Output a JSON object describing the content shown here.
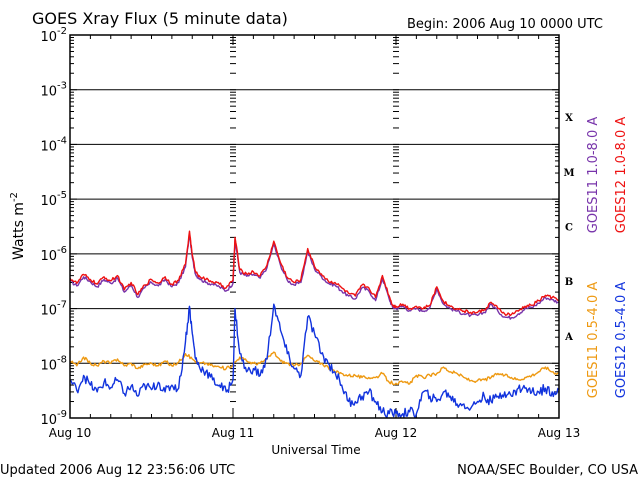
{
  "header": {
    "title": "GOES Xray Flux (5 minute data)",
    "begin": "Begin:  2006 Aug 10 0000 UTC"
  },
  "footer": {
    "updated": "Updated 2006 Aug 12 23:56:06 UTC",
    "credit": "NOAA/SEC Boulder, CO USA"
  },
  "colors": {
    "goes11_long": "#7733aa",
    "goes12_long": "#ee1111",
    "goes11_short": "#ee9911",
    "goes12_short": "#1133dd"
  },
  "chart_data": {
    "type": "line",
    "title": "GOES Xray Flux (5 minute data)",
    "xlabel": "Universal Time",
    "ylabel": "Watts m",
    "ylabel_sup": "-2",
    "y_scale": "log",
    "ylim": [
      1e-09,
      0.01
    ],
    "xlim": [
      0,
      72
    ],
    "x_unit": "hours since 2006 Aug 10 0000 UTC",
    "x_ticks": [
      {
        "x": 0,
        "label": "Aug 10"
      },
      {
        "x": 24,
        "label": "Aug 11"
      },
      {
        "x": 48,
        "label": "Aug 12"
      },
      {
        "x": 72,
        "label": "Aug 13"
      }
    ],
    "y_ticks": [
      {
        "exp": -9,
        "label": "10",
        "sup": "-9"
      },
      {
        "exp": -8,
        "label": "10",
        "sup": "-8"
      },
      {
        "exp": -7,
        "label": "10",
        "sup": "-7"
      },
      {
        "exp": -6,
        "label": "10",
        "sup": "-6"
      },
      {
        "exp": -5,
        "label": "10",
        "sup": "-5"
      },
      {
        "exp": -4,
        "label": "10",
        "sup": "-4"
      },
      {
        "exp": -3,
        "label": "10",
        "sup": "-3"
      },
      {
        "exp": -2,
        "label": "10",
        "sup": "-2"
      }
    ],
    "flare_classes": [
      {
        "label": "A",
        "exp": -7.5
      },
      {
        "label": "B",
        "exp": -6.5
      },
      {
        "label": "C",
        "exp": -5.5
      },
      {
        "label": "M",
        "exp": -4.5
      },
      {
        "label": "X",
        "exp": -3.5
      }
    ],
    "series": [
      {
        "name": "GOES11 1.0-8.0 A",
        "color": "#7733aa",
        "x": [
          0,
          1,
          2,
          3,
          4,
          5,
          6,
          7,
          8,
          9,
          10,
          11,
          12,
          13,
          14,
          15,
          16,
          17,
          17.6,
          18,
          18.5,
          19,
          20,
          21,
          22,
          23,
          24,
          24.3,
          25,
          26,
          27,
          28,
          29,
          30,
          31,
          32,
          33,
          34,
          35,
          36,
          37,
          38,
          39,
          40,
          41,
          42,
          43,
          44,
          45,
          46,
          47,
          47.5,
          48,
          49,
          50,
          51,
          52,
          53,
          54,
          55,
          56,
          57,
          58,
          59,
          60,
          61,
          62,
          63,
          64,
          65,
          66,
          67,
          68,
          69,
          70,
          71,
          72
        ],
        "y": [
          3.2e-07,
          2.6e-07,
          3.8e-07,
          3.1e-07,
          2.5e-07,
          3.4e-07,
          2.9e-07,
          3.6e-07,
          2e-07,
          2.7e-07,
          1.6e-07,
          2.4e-07,
          3e-07,
          2.6e-07,
          3.4e-07,
          2.5e-07,
          3e-07,
          5.8e-07,
          2.3e-06,
          8.5e-07,
          4.2e-07,
          3.6e-07,
          3e-07,
          2.8e-07,
          2.5e-07,
          2.1e-07,
          2.9e-07,
          1.8e-06,
          4.6e-07,
          3.9e-07,
          4.2e-07,
          3.6e-07,
          5.6e-07,
          1.5e-06,
          6.2e-07,
          3.3e-07,
          2.7e-07,
          3e-07,
          1.1e-06,
          5.3e-07,
          3.9e-07,
          2.9e-07,
          2.7e-07,
          2.1e-07,
          1.7e-07,
          1.5e-07,
          2.4e-07,
          2.1e-07,
          1.4e-07,
          3.6e-07,
          1.5e-07,
          1.05e-07,
          1e-07,
          1.1e-07,
          9.2e-08,
          1e-07,
          9e-08,
          1.05e-07,
          2.3e-07,
          1.2e-07,
          1e-07,
          9e-08,
          8e-08,
          7.5e-08,
          7.5e-08,
          8.5e-08,
          1.2e-07,
          9e-08,
          7e-08,
          6.8e-08,
          8e-08,
          1e-07,
          1.05e-07,
          1.25e-07,
          1.6e-07,
          1.45e-07,
          1.3e-07
        ]
      },
      {
        "name": "GOES12 1.0-8.0 A",
        "color": "#ee1111",
        "x": [
          0,
          1,
          2,
          3,
          4,
          5,
          6,
          7,
          8,
          9,
          10,
          11,
          12,
          13,
          14,
          15,
          16,
          17,
          17.6,
          18,
          18.5,
          19,
          20,
          21,
          22,
          23,
          24,
          24.3,
          25,
          26,
          27,
          28,
          29,
          30,
          31,
          32,
          33,
          34,
          35,
          36,
          37,
          38,
          39,
          40,
          41,
          42,
          43,
          44,
          45,
          46,
          47,
          47.5,
          48,
          49,
          50,
          51,
          52,
          53,
          54,
          55,
          56,
          57,
          58,
          59,
          60,
          61,
          62,
          63,
          64,
          65,
          66,
          67,
          68,
          69,
          70,
          71,
          72
        ],
        "y": [
          3.6e-07,
          2.9e-07,
          4.2e-07,
          3.4e-07,
          2.8e-07,
          3.8e-07,
          3.2e-07,
          4e-07,
          2.2e-07,
          3e-07,
          1.8e-07,
          2.7e-07,
          3.4e-07,
          2.9e-07,
          3.8e-07,
          2.8e-07,
          3.3e-07,
          6.5e-07,
          2.6e-06,
          9.5e-07,
          4.7e-07,
          4e-07,
          3.4e-07,
          3.1e-07,
          2.8e-07,
          2.4e-07,
          3.3e-07,
          2e-06,
          5.1e-07,
          4.3e-07,
          4.7e-07,
          4e-07,
          6.2e-07,
          1.7e-06,
          6.9e-07,
          3.7e-07,
          3e-07,
          3.4e-07,
          1.25e-06,
          5.9e-07,
          4.3e-07,
          3.2e-07,
          3e-07,
          2.4e-07,
          1.9e-07,
          1.7e-07,
          2.7e-07,
          2.4e-07,
          1.6e-07,
          4e-07,
          1.7e-07,
          1.15e-07,
          1.1e-07,
          1.2e-07,
          1e-07,
          1.1e-07,
          1e-07,
          1.15e-07,
          2.5e-07,
          1.35e-07,
          1.1e-07,
          1e-07,
          9e-08,
          8.5e-08,
          8.5e-08,
          9.5e-08,
          1.3e-07,
          1e-07,
          8e-08,
          7.8e-08,
          9e-08,
          1.1e-07,
          1.15e-07,
          1.4e-07,
          1.75e-07,
          1.6e-07,
          1.4e-07
        ]
      },
      {
        "name": "GOES11 0.5-4.0 A",
        "color": "#ee9911",
        "x": [
          0,
          1,
          2,
          3,
          4,
          5,
          6,
          7,
          8,
          9,
          10,
          11,
          12,
          13,
          14,
          15,
          16,
          17,
          18,
          19,
          20,
          21,
          22,
          23,
          24,
          25,
          26,
          27,
          28,
          29,
          30,
          31,
          32,
          33,
          34,
          35,
          36,
          37,
          38,
          39,
          40,
          41,
          42,
          43,
          44,
          45,
          46,
          47,
          48,
          49,
          50,
          51,
          52,
          53,
          54,
          55,
          56,
          57,
          58,
          59,
          60,
          61,
          62,
          63,
          64,
          65,
          66,
          67,
          68,
          69,
          70,
          71,
          72
        ],
        "y": [
          1.1e-08,
          9e-09,
          1.3e-08,
          1e-08,
          9e-09,
          1.1e-08,
          1e-08,
          1.2e-08,
          9e-09,
          1e-08,
          8e-09,
          9.5e-09,
          1e-08,
          9e-09,
          1.1e-08,
          9e-09,
          1.05e-08,
          1.5e-08,
          1.2e-08,
          1e-08,
          1e-08,
          9e-09,
          8.5e-09,
          8e-09,
          9.5e-09,
          1.3e-08,
          1.1e-08,
          1e-08,
          1e-08,
          1.2e-08,
          1.6e-08,
          1.1e-08,
          1e-08,
          9e-09,
          1e-08,
          1.4e-08,
          1.1e-08,
          1e-08,
          8.5e-09,
          7e-09,
          6.5e-09,
          6e-09,
          6e-09,
          5.5e-09,
          5.5e-09,
          5.5e-09,
          6.5e-09,
          4.5e-09,
          4.3e-09,
          4.5e-09,
          4.2e-09,
          6e-09,
          5.5e-09,
          6e-09,
          6.5e-09,
          8.5e-09,
          7e-09,
          6.5e-09,
          5.5e-09,
          4.8e-09,
          4.8e-09,
          5e-09,
          5.5e-09,
          6.5e-09,
          6e-09,
          5.5e-09,
          5e-09,
          5.5e-09,
          6e-09,
          7e-09,
          8.5e-09,
          7e-09,
          6.5e-09
        ]
      },
      {
        "name": "GOES12 0.5-4.0 A",
        "color": "#1133dd",
        "x": [
          0,
          1,
          2,
          3,
          4,
          5,
          6,
          7,
          8,
          9,
          10,
          11,
          12,
          13,
          14,
          15,
          16,
          17,
          17.6,
          18,
          18.5,
          19,
          20,
          21,
          22,
          23,
          24,
          24.3,
          25,
          26,
          27,
          28,
          29,
          30,
          31,
          32,
          33,
          34,
          35,
          36,
          37,
          38,
          39,
          40,
          41,
          42,
          43,
          44,
          45,
          46,
          47,
          48,
          49,
          50,
          51,
          52,
          53,
          54,
          55,
          56,
          57,
          58,
          59,
          60,
          61,
          62,
          63,
          64,
          65,
          66,
          67,
          68,
          69,
          70,
          71,
          72
        ],
        "y": [
          5e-09,
          3.2e-09,
          6e-09,
          4e-09,
          3e-09,
          4.5e-09,
          3.6e-09,
          5e-09,
          2.8e-09,
          3.8e-09,
          2.5e-09,
          4e-09,
          3.3e-09,
          4.5e-09,
          3e-09,
          4e-09,
          3.5e-09,
          2.5e-08,
          1.1e-07,
          3.5e-08,
          1.2e-08,
          9e-09,
          7e-09,
          5e-09,
          4e-09,
          3e-09,
          5e-09,
          1e-07,
          1.5e-08,
          7e-09,
          8e-09,
          6e-09,
          1.2e-08,
          1.2e-07,
          4e-08,
          1.5e-08,
          8e-09,
          6e-09,
          7e-08,
          3.5e-08,
          1.5e-08,
          1e-08,
          7e-09,
          4e-09,
          2e-09,
          2e-09,
          2.5e-09,
          3e-09,
          2e-09,
          1.3e-09,
          1.2e-09,
          1.2e-09,
          1.2e-09,
          1.3e-09,
          1.2e-09,
          3e-09,
          2.5e-09,
          2e-09,
          3e-09,
          2.5e-09,
          1.8e-09,
          1.8e-09,
          1.5e-09,
          2e-09,
          2.5e-09,
          2e-09,
          2.5e-09,
          3e-09,
          2.5e-09,
          3.5e-09,
          3.5e-09,
          3e-09,
          3e-09,
          3.5e-09,
          3e-09,
          3.2e-09
        ]
      }
    ]
  }
}
